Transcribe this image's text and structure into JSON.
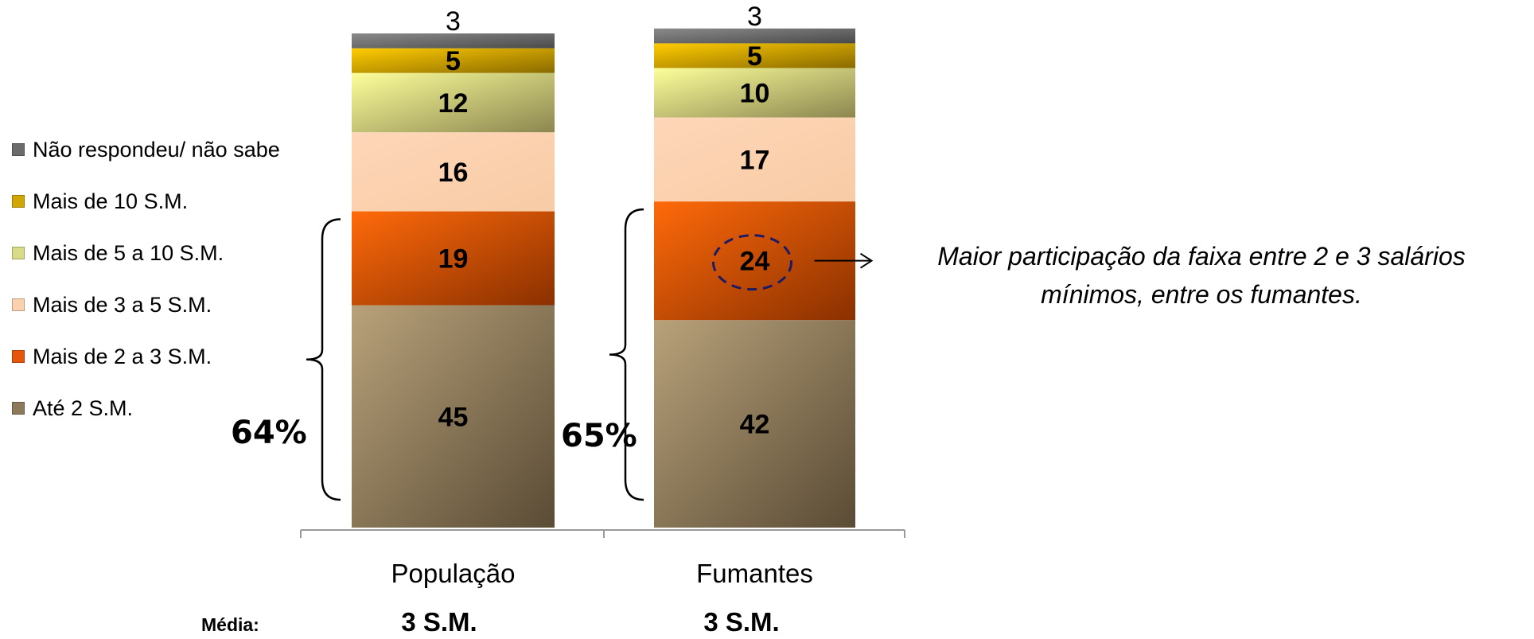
{
  "chart_data": {
    "type": "stacked-bar",
    "categories": [
      "População",
      "Fumantes"
    ],
    "series": [
      {
        "name": "Até 2 S.M.",
        "values": [
          45,
          42
        ],
        "color": "#8c7a5a"
      },
      {
        "name": "Mais de 2 a 3 S.M.",
        "values": [
          19,
          24
        ],
        "color": "#e5560a"
      },
      {
        "name": "Mais de 3 a 5 S.M.",
        "values": [
          16,
          17
        ],
        "color": "#fcd1ad"
      },
      {
        "name": "Mais de 5 a 10 S.M.",
        "values": [
          12,
          10
        ],
        "color": "#d9dc86"
      },
      {
        "name": "Mais de 10 S.M.",
        "values": [
          5,
          5
        ],
        "color": "#d2a600"
      },
      {
        "name": "Não respondeu/ não sabe",
        "values": [
          3,
          3
        ],
        "color": "#6b6b6b"
      }
    ],
    "ylim": [
      0,
      100
    ],
    "legend_position": "left",
    "brackets": [
      {
        "category": "População",
        "label": "64%"
      },
      {
        "category": "Fumantes",
        "label": "65%"
      }
    ],
    "highlight": {
      "category": "Fumantes",
      "series": "Mais de 2 a 3 S.M."
    },
    "annotation": [
      "Maior participação da faixa entre 2 e 3 salários",
      "mínimos, entre os fumantes."
    ]
  },
  "media": {
    "label": "Média:",
    "values": [
      "3 S.M.",
      "3 S.M."
    ]
  }
}
